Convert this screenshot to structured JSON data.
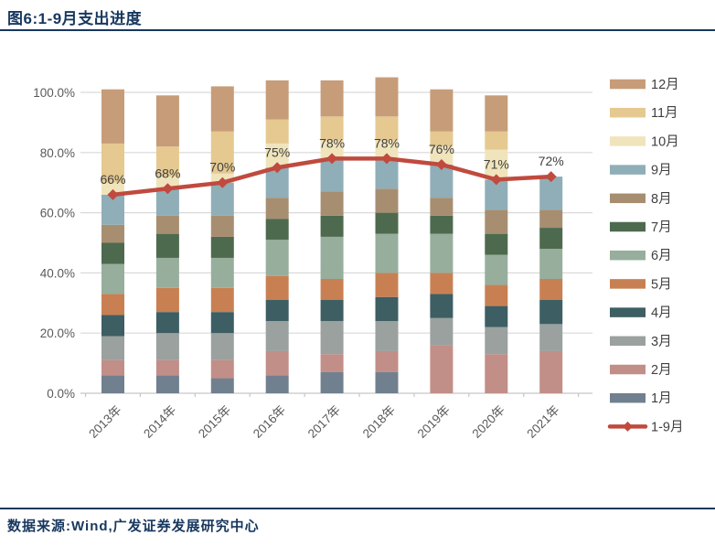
{
  "header": {
    "title": "图6:1-9月支出进度"
  },
  "footer": {
    "source": "数据来源:Wind,广发证券发展研究中心"
  },
  "colors": {
    "title_text": "#17375E",
    "rule": "#17375E",
    "axis_text": "#595959",
    "label_text": "#404040",
    "grid_line": "#D9D9D9",
    "axis_line": "#C6C6C6",
    "line_series": "#C04A3E"
  },
  "chart_data": {
    "type": "stacked-bar+line",
    "title": "1-9月支出进度",
    "categories": [
      "2013年",
      "2014年",
      "2015年",
      "2016年",
      "2017年",
      "2018年",
      "2019年",
      "2020年",
      "2021年"
    ],
    "series": [
      {
        "name": "1月",
        "color": "#71808F",
        "values": [
          6,
          6,
          5,
          6,
          7,
          7,
          0,
          0,
          0
        ]
      },
      {
        "name": "2月",
        "color": "#C28E88",
        "values": [
          5,
          5,
          6,
          8,
          6,
          7,
          16,
          13,
          14
        ]
      },
      {
        "name": "3月",
        "color": "#9AA19E",
        "values": [
          8,
          9,
          9,
          10,
          11,
          10,
          9,
          9,
          9
        ]
      },
      {
        "name": "4月",
        "color": "#3D5E63",
        "values": [
          7,
          7,
          7,
          7,
          7,
          8,
          8,
          7,
          8
        ]
      },
      {
        "name": "5月",
        "color": "#C88053",
        "values": [
          7,
          8,
          8,
          8,
          7,
          8,
          7,
          7,
          7
        ]
      },
      {
        "name": "6月",
        "color": "#97AE9D",
        "values": [
          10,
          10,
          10,
          12,
          14,
          13,
          13,
          10,
          10
        ]
      },
      {
        "name": "7月",
        "color": "#4D6A4E",
        "values": [
          7,
          8,
          7,
          7,
          7,
          7,
          6,
          7,
          7
        ]
      },
      {
        "name": "8月",
        "color": "#A78E71",
        "values": [
          6,
          6,
          7,
          7,
          8,
          8,
          6,
          8,
          6
        ]
      },
      {
        "name": "9月",
        "color": "#8FAEB8",
        "values": [
          10,
          9,
          11,
          10,
          11,
          10,
          11,
          10,
          11
        ]
      },
      {
        "name": "10月",
        "color": "#F0E4BC",
        "values": [
          4,
          4,
          3,
          8,
          6,
          6,
          6,
          10,
          0
        ]
      },
      {
        "name": "11月",
        "color": "#E5C990",
        "values": [
          13,
          10,
          14,
          8,
          8,
          8,
          5,
          6,
          0
        ]
      },
      {
        "name": "12月",
        "color": "#C79C79",
        "values": [
          18,
          17,
          15,
          13,
          12,
          13,
          14,
          12,
          0
        ]
      }
    ],
    "line_series": {
      "name": "1-9月",
      "color": "#C04A3E",
      "values": [
        66,
        68,
        70,
        75,
        78,
        78,
        76,
        71,
        72
      ],
      "labels": [
        "66%",
        "68%",
        "70%",
        "75%",
        "78%",
        "78%",
        "76%",
        "71%",
        "72%"
      ]
    },
    "yticks": {
      "values": [
        0,
        20,
        40,
        60,
        80,
        100
      ],
      "labels": [
        "0.0%",
        "20.0%",
        "40.0%",
        "60.0%",
        "80.0%",
        "100.0%"
      ]
    },
    "ylim": [
      0,
      105
    ],
    "grid": "horizontal",
    "legend_position": "right",
    "legend_order": [
      "12月",
      "11月",
      "10月",
      "9月",
      "8月",
      "7月",
      "6月",
      "5月",
      "4月",
      "3月",
      "2月",
      "1月",
      "1-9月"
    ]
  }
}
